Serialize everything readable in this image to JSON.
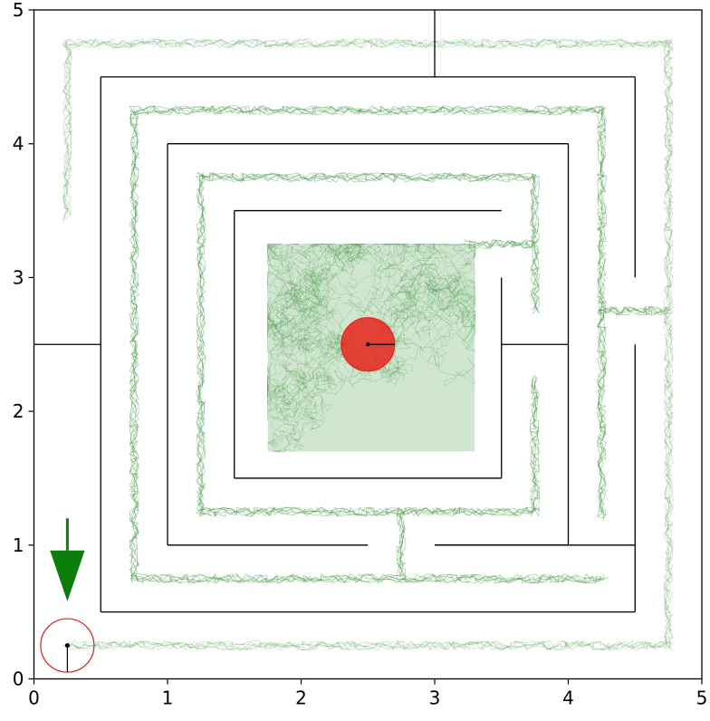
{
  "axes": {
    "x_ticks": [
      "0",
      "1",
      "2",
      "3",
      "4",
      "5"
    ],
    "y_ticks": [
      "0",
      "1",
      "2",
      "3",
      "4",
      "5"
    ]
  },
  "chart_data": {
    "type": "scatter",
    "xlim": [
      0,
      5
    ],
    "ylim": [
      0,
      5
    ],
    "grid": false,
    "legend": "none",
    "start": {
      "x": 0.25,
      "y": 0.25,
      "radius": 0.2,
      "heading": "down",
      "color": "#e01e1e"
    },
    "goal": {
      "x": 2.5,
      "y": 2.5,
      "radius": 0.2,
      "color": "#e8231c"
    },
    "direction_arrow": {
      "x": 0.25,
      "y_from": 1.2,
      "y_to": 0.58,
      "color": "#0a7d0a"
    },
    "explored_color": "#2e8b2e",
    "walls": [
      [
        [
          0.0,
          2.5
        ],
        [
          0.5,
          2.5
        ]
      ],
      [
        [
          3.0,
          5.0
        ],
        [
          3.0,
          4.5
        ]
      ],
      [
        [
          0.5,
          0.5
        ],
        [
          0.5,
          4.5
        ]
      ],
      [
        [
          0.5,
          4.5
        ],
        [
          4.5,
          4.5
        ]
      ],
      [
        [
          4.5,
          4.5
        ],
        [
          4.5,
          3.0
        ]
      ],
      [
        [
          4.5,
          2.5
        ],
        [
          4.5,
          0.5
        ]
      ],
      [
        [
          4.5,
          0.5
        ],
        [
          0.5,
          0.5
        ]
      ],
      [
        [
          1.0,
          1.0
        ],
        [
          1.0,
          4.0
        ]
      ],
      [
        [
          1.0,
          4.0
        ],
        [
          4.0,
          4.0
        ]
      ],
      [
        [
          4.0,
          4.0
        ],
        [
          4.0,
          1.0
        ]
      ],
      [
        [
          4.0,
          1.0
        ],
        [
          3.0,
          1.0
        ]
      ],
      [
        [
          2.5,
          1.0
        ],
        [
          1.0,
          1.0
        ]
      ],
      [
        [
          1.5,
          1.5
        ],
        [
          1.5,
          3.5
        ]
      ],
      [
        [
          1.5,
          3.5
        ],
        [
          3.5,
          3.5
        ]
      ],
      [
        [
          3.5,
          3.0
        ],
        [
          3.5,
          1.5
        ]
      ],
      [
        [
          3.5,
          1.5
        ],
        [
          1.5,
          1.5
        ]
      ],
      [
        [
          3.5,
          2.5
        ],
        [
          4.0,
          2.5
        ]
      ],
      [
        [
          3.0,
          1.0
        ],
        [
          4.5,
          1.0
        ]
      ]
    ],
    "explored_paths": [
      [
        [
          0.25,
          0.25
        ],
        [
          4.75,
          0.25
        ],
        [
          4.75,
          4.75
        ],
        [
          0.25,
          4.75
        ],
        [
          0.25,
          3.45
        ]
      ],
      [
        [
          4.75,
          2.75
        ],
        [
          4.6,
          2.75
        ],
        [
          4.25,
          2.75
        ],
        [
          4.25,
          1.2
        ]
      ],
      [
        [
          4.25,
          2.75
        ],
        [
          4.25,
          4.25
        ],
        [
          0.75,
          4.25
        ],
        [
          0.75,
          0.75
        ],
        [
          4.27,
          0.75
        ]
      ],
      [
        [
          2.75,
          0.75
        ],
        [
          2.75,
          1.25
        ],
        [
          3.75,
          1.25
        ],
        [
          3.75,
          2.25
        ]
      ],
      [
        [
          2.75,
          1.25
        ],
        [
          1.25,
          1.25
        ],
        [
          1.25,
          3.75
        ],
        [
          3.75,
          3.75
        ],
        [
          3.75,
          2.75
        ]
      ],
      [
        [
          3.75,
          3.25
        ],
        [
          3.6,
          3.25
        ],
        [
          3.25,
          3.25
        ]
      ]
    ],
    "explored_region": {
      "x": [
        1.75,
        3.3
      ],
      "y": [
        1.7,
        3.25
      ]
    }
  }
}
